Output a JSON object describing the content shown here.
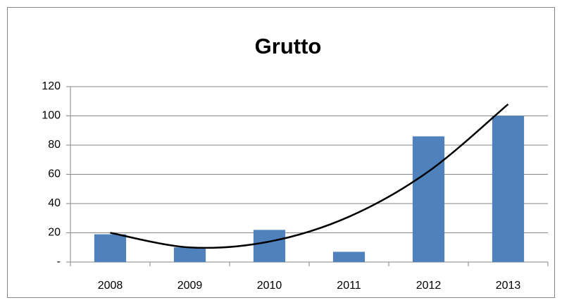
{
  "chart_data": {
    "type": "bar",
    "title": "Grutto",
    "categories": [
      "2008",
      "2009",
      "2010",
      "2011",
      "2012",
      "2013"
    ],
    "values": [
      19,
      10,
      22,
      7,
      86,
      100
    ],
    "color": "#4f81bd",
    "ylim": [
      0,
      120
    ],
    "yticks": [
      {
        "value": 0,
        "label": "-"
      },
      20,
      40,
      60,
      80,
      100,
      120
    ],
    "grid": true,
    "trendline": {
      "color": "#000000",
      "values": [
        20,
        10,
        14,
        31,
        62,
        108
      ]
    }
  }
}
